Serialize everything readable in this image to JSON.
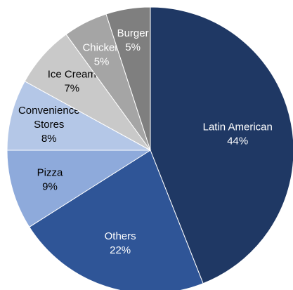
{
  "chart_data": {
    "type": "pie",
    "title": "",
    "slices": [
      {
        "label": "Latin American",
        "value": 44,
        "value_label": "44%",
        "color": "#1f3864",
        "text_color": "#ffffff"
      },
      {
        "label": "Others",
        "value": 22,
        "value_label": "22%",
        "color": "#2f5597",
        "text_color": "#ffffff"
      },
      {
        "label": "Pizza",
        "value": 9,
        "value_label": "9%",
        "color": "#8eaadb",
        "text_color": "#000000"
      },
      {
        "label": "Convenience Stores",
        "value": 8,
        "value_label": "8%",
        "color": "#b4c7e7",
        "text_color": "#000000"
      },
      {
        "label": "Ice Cream",
        "value": 7,
        "value_label": "7%",
        "color": "#c9c9c9",
        "text_color": "#000000"
      },
      {
        "label": "Chicken",
        "value": 5,
        "value_label": "5%",
        "color": "#a5a5a5",
        "text_color": "#ffffff"
      },
      {
        "label": "Burger",
        "value": 5,
        "value_label": "5%",
        "color": "#7f7f7f",
        "text_color": "#ffffff"
      }
    ],
    "start_angle": "12 o'clock",
    "direction": "clockwise",
    "legend": "none"
  }
}
